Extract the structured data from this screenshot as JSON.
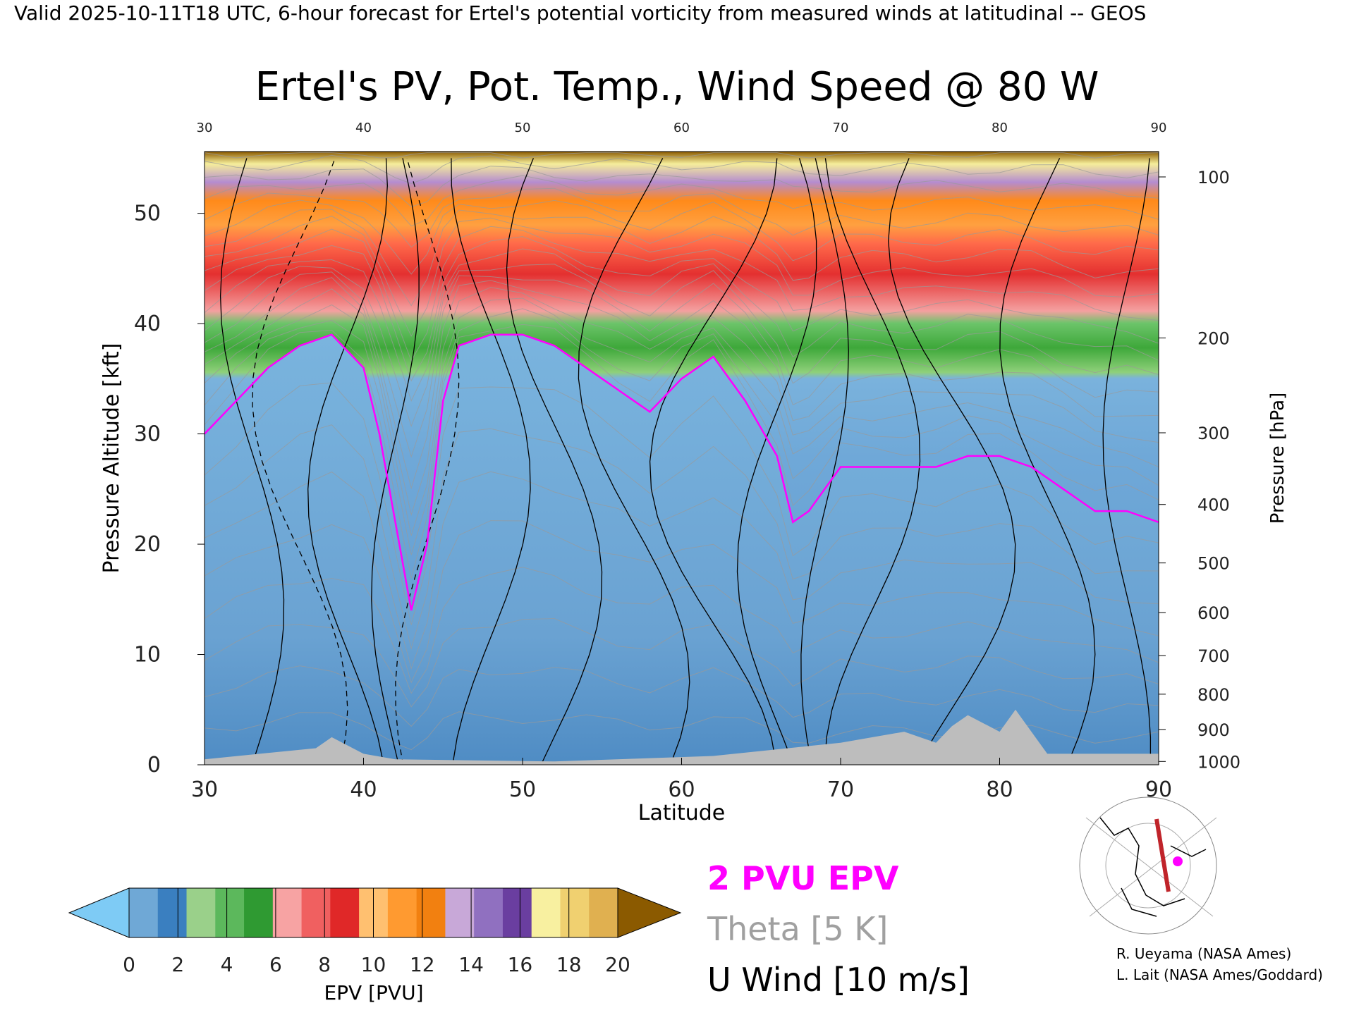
{
  "header": "Valid 2025-10-11T18 UTC, 6-hour forecast for Ertel's potential vorticity from measured winds at latitudinal -- GEOS",
  "chart_data": {
    "type": "heatmap",
    "title": "Ertel's PV, Pot. Temp., Wind Speed @ 80 W",
    "xlabel": "Latitude",
    "ylabel": "Pressure Altitude [kft]",
    "y2label": "Pressure [hPa]",
    "xlim": [
      30,
      90
    ],
    "ylim": [
      0,
      55.6
    ],
    "x_ticks": [
      30,
      40,
      50,
      60,
      70,
      80,
      90
    ],
    "y_ticks": [
      0,
      10,
      20,
      30,
      40,
      50
    ],
    "pressure_ticks": [
      {
        "label": "100",
        "kft": 53.3
      },
      {
        "label": "200",
        "kft": 38.7
      },
      {
        "label": "300",
        "kft": 30.1
      },
      {
        "label": "400",
        "kft": 23.6
      },
      {
        "label": "500",
        "kft": 18.3
      },
      {
        "label": "600",
        "kft": 13.8
      },
      {
        "label": "700",
        "kft": 9.9
      },
      {
        "label": "800",
        "kft": 6.4
      },
      {
        "label": "900",
        "kft": 3.2
      },
      {
        "label": "1000",
        "kft": 0.3
      }
    ],
    "tropopause_2pvu_kft": {
      "lat": [
        30,
        32,
        34,
        36,
        38,
        40,
        41,
        42,
        43,
        44,
        45,
        46,
        48,
        50,
        52,
        54,
        56,
        58,
        60,
        62,
        64,
        66,
        67,
        68,
        70,
        72,
        74,
        76,
        78,
        80,
        82,
        84,
        86,
        88,
        90
      ],
      "kft": [
        30,
        33,
        36,
        38,
        39,
        36,
        30,
        22,
        14,
        20,
        33,
        38,
        39,
        39,
        38,
        36,
        34,
        32,
        35,
        37,
        33,
        28,
        22,
        23,
        27,
        27,
        27,
        27,
        28,
        28,
        27,
        25,
        23,
        23,
        22
      ]
    },
    "colorbar": {
      "label": "EPV [PVU]",
      "ticks": [
        "0",
        "2",
        "4",
        "6",
        "8",
        "10",
        "12",
        "14",
        "16",
        "18",
        "20"
      ],
      "under_color": "#7ecbf5",
      "over_color": "#8b5a00",
      "colors": [
        "#6fa8d6",
        "#3a7fc0",
        "#9ad08a",
        "#5cb85c",
        "#2f9a32",
        "#f7a3a3",
        "#f06060",
        "#e02828",
        "#ffc070",
        "#ff9a30",
        "#f28010",
        "#c8a8d8",
        "#9070c0",
        "#6a3ea0",
        "#f8f0a0",
        "#f0d070",
        "#e0b050"
      ]
    },
    "legend": [
      {
        "text": "2 PVU EPV",
        "color": "#ff00ff"
      },
      {
        "text": "Theta [5 K]",
        "color": "#a0a0a0"
      },
      {
        "text": "U Wind [10 m/s]",
        "color": "#000000"
      }
    ],
    "credits": [
      "R. Ueyama (NASA Ames)",
      "L. Lait (NASA Ames/Goddard)"
    ]
  }
}
